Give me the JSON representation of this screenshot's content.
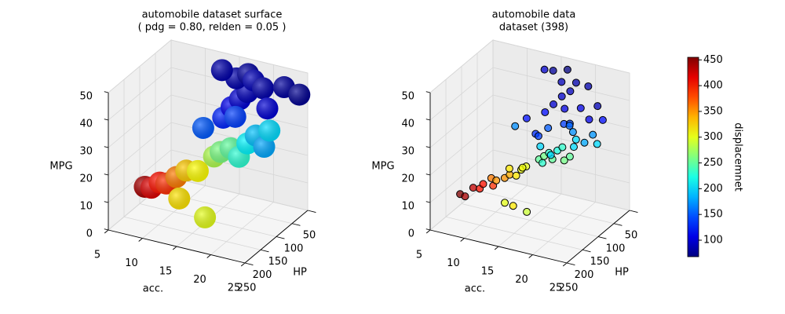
{
  "chart_data": [
    {
      "type": "surface",
      "title": [
        "automobile dataset surface",
        "( pdg = 0.80, relden = 0.05 )"
      ],
      "xlabel": "acc.",
      "ylabel": "HP",
      "zlabel": "MPG",
      "xlim": [
        5,
        25
      ],
      "ylim": [
        50,
        250
      ],
      "zlim": [
        0,
        50
      ],
      "xticks": [
        5,
        10,
        15,
        20,
        25
      ],
      "yticks": [
        50,
        100,
        150,
        200,
        250
      ],
      "zticks": [
        0,
        10,
        20,
        30,
        40,
        50
      ],
      "colormap": "jet",
      "x": [
        8.5,
        9,
        10,
        10.5,
        11.5,
        12.5,
        13.5,
        14.5,
        15,
        16,
        17,
        18,
        14,
        18,
        19,
        20,
        21,
        14,
        15,
        16,
        17,
        15,
        16.5,
        18,
        19,
        20,
        13,
        16,
        12,
        22,
        24
      ],
      "y": [
        210,
        200,
        195,
        185,
        175,
        165,
        150,
        120,
        110,
        100,
        95,
        225,
        220,
        90,
        85,
        80,
        85,
        80,
        75,
        70,
        68,
        60,
        55,
        70,
        62,
        70,
        62,
        85,
        100,
        60,
        55
      ],
      "z": [
        14,
        13,
        15,
        14,
        16,
        18,
        17,
        20,
        21,
        22,
        19,
        10,
        14,
        24,
        27,
        23,
        30,
        30,
        34,
        37,
        40,
        43,
        45,
        45,
        42,
        36,
        45,
        32,
        27,
        44,
        42
      ],
      "c": [
        440,
        420,
        400,
        390,
        360,
        330,
        310,
        280,
        260,
        250,
        230,
        300,
        320,
        210,
        190,
        180,
        200,
        130,
        110,
        100,
        90,
        85,
        80,
        90,
        85,
        100,
        85,
        140,
        150,
        80,
        75
      ]
    },
    {
      "type": "scatter",
      "title": [
        "automobile data",
        "dataset (398)"
      ],
      "xlabel": "acc.",
      "ylabel": "HP",
      "zlabel": "MPG",
      "xlim": [
        5,
        25
      ],
      "ylim": [
        50,
        250
      ],
      "zlim": [
        0,
        50
      ],
      "xticks": [
        5,
        10,
        15,
        20,
        25
      ],
      "yticks": [
        50,
        100,
        150,
        200,
        250
      ],
      "zticks": [
        0,
        10,
        20,
        30,
        40,
        50
      ],
      "colormap": "jet",
      "clim": [
        68,
        455
      ],
      "cticks": [
        100,
        150,
        200,
        250,
        300,
        350,
        400,
        450
      ],
      "clabel": "displacemnet",
      "x": [
        8,
        8.5,
        9,
        9.5,
        10,
        11,
        10.5,
        11,
        12,
        12.5,
        12,
        13,
        13.5,
        14,
        13,
        14.5,
        15,
        15.5,
        16,
        16.5,
        15,
        17,
        18,
        19,
        16,
        14,
        17.5,
        15,
        16,
        18,
        19,
        20,
        21,
        18,
        22,
        14,
        15,
        16,
        17,
        18,
        15.5,
        16.5,
        17,
        18,
        19,
        20,
        14.5,
        13,
        15,
        21,
        16,
        19.5,
        22,
        14,
        12,
        17.5,
        13.5,
        11
      ],
      "y": [
        220,
        215,
        200,
        190,
        190,
        180,
        175,
        170,
        165,
        160,
        150,
        150,
        145,
        140,
        130,
        110,
        105,
        100,
        100,
        95,
        110,
        90,
        88,
        97,
        105,
        95,
        95,
        230,
        225,
        225,
        90,
        85,
        80,
        78,
        88,
        80,
        75,
        70,
        65,
        68,
        60,
        72,
        85,
        88,
        75,
        70,
        65,
        60,
        92,
        65,
        52,
        62,
        70,
        110,
        95,
        78,
        90,
        110
      ],
      "z": [
        12,
        11,
        13,
        12,
        14,
        13,
        15,
        14,
        15,
        16,
        17,
        15,
        17,
        18,
        16,
        18,
        19,
        20,
        18,
        21,
        17,
        22,
        19,
        24,
        20,
        21,
        18,
        14,
        13,
        12,
        26,
        25,
        28,
        27,
        26,
        32,
        35,
        38,
        40,
        44,
        42,
        34,
        30,
        31,
        36,
        32,
        46,
        45,
        28,
        37,
        46,
        43,
        33,
        27,
        30,
        29,
        24,
        28
      ],
      "c": [
        455,
        440,
        429,
        400,
        400,
        390,
        360,
        350,
        350,
        340,
        318,
        318,
        305,
        302,
        304,
        250,
        258,
        232,
        250,
        225,
        231,
        232,
        250,
        200,
        200,
        198,
        258,
        300,
        318,
        290,
        200,
        181,
        173,
        171,
        200,
        120,
        98,
        97,
        91,
        85,
        90,
        105,
        140,
        141,
        107,
        108,
        79,
        97,
        151,
        89,
        68,
        85,
        121,
        134,
        122,
        156,
        140,
        170
      ]
    }
  ]
}
